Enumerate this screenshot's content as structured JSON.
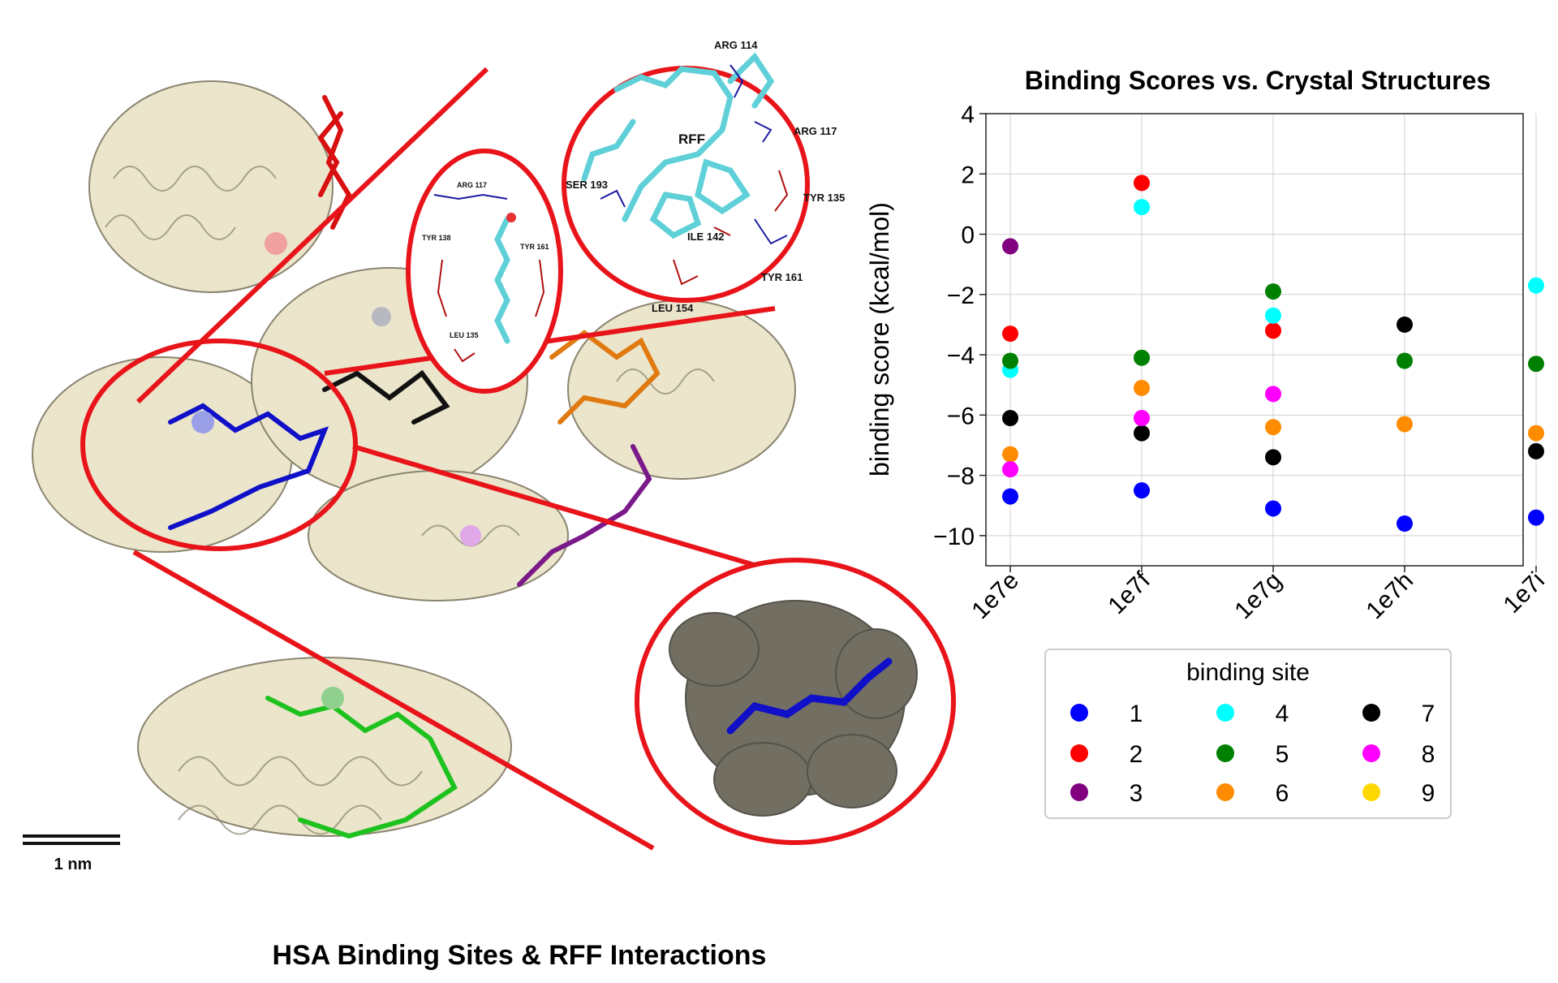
{
  "left_panel": {
    "caption": "HSA Binding Sites & RFF Interactions",
    "scale_bar_label": "1 nm",
    "zoom_top_labels": {
      "arg114": "ARG 114",
      "arg117": "ARG 117",
      "ser193": "SER 193",
      "rff": "RFF",
      "tyr135": "TYR 135",
      "ile142": "ILE 142",
      "tyr161": "TYR 161",
      "leu154": "LEU 154"
    },
    "zoom_mid_labels": {
      "arg117": "ARG 117",
      "tyr138": "TYR 138",
      "tyr161": "TYR 161",
      "leu135": "LEU 135"
    },
    "colors": {
      "highlight": "#e8141a",
      "protein": "#e8e2c8",
      "surface": "#6b685a",
      "ligand_site1": "#1010c8",
      "ligand_site2": "#d81010",
      "ligand_site3": "#7a1a8a",
      "ligand_site5": "#1ec21e",
      "ligand_site6": "#e07a10",
      "ligand_site7": "#111111",
      "rff_carbon": "#5fd0d8"
    }
  },
  "chart_data": {
    "type": "scatter",
    "title": "Binding Scores vs. Crystal Structures",
    "xlabel": "",
    "ylabel": "binding score (kcal/mol)",
    "categories": [
      "1e7e",
      "1e7f",
      "1e7g",
      "1e7h",
      "1e7i"
    ],
    "ylim": [
      -11,
      4
    ],
    "yticks": [
      4,
      2,
      0,
      -2,
      -4,
      -6,
      -8,
      -10
    ],
    "ytick_labels": [
      "4",
      "2",
      "0",
      "−2",
      "−4",
      "−6",
      "−8",
      "−10"
    ],
    "grid": true,
    "legend_title": "binding site",
    "legend_position": "bottom",
    "series": [
      {
        "name": "1",
        "color": "#0000ff",
        "values": [
          -8.7,
          -8.5,
          -9.1,
          -9.6,
          -9.4
        ]
      },
      {
        "name": "2",
        "color": "#ff0000",
        "values": [
          -3.3,
          1.7,
          -3.2,
          null,
          null
        ]
      },
      {
        "name": "3",
        "color": "#800080",
        "values": [
          -0.4,
          null,
          null,
          null,
          null
        ]
      },
      {
        "name": "4",
        "color": "#00ffff",
        "values": [
          -4.5,
          0.9,
          -2.7,
          null,
          -1.7
        ]
      },
      {
        "name": "5",
        "color": "#008000",
        "values": [
          -4.2,
          -4.1,
          -1.9,
          -4.2,
          -4.3
        ]
      },
      {
        "name": "6",
        "color": "#ff8c00",
        "values": [
          -7.3,
          -5.1,
          -6.4,
          -6.3,
          -6.6
        ]
      },
      {
        "name": "7",
        "color": "#000000",
        "values": [
          -6.1,
          -6.6,
          -7.4,
          -3.0,
          -7.2
        ]
      },
      {
        "name": "8",
        "color": "#ff00ff",
        "values": [
          -7.8,
          -6.1,
          -5.3,
          null,
          null
        ]
      },
      {
        "name": "9",
        "color": "#ffd700",
        "values": [
          null,
          null,
          null,
          null,
          null
        ]
      }
    ]
  }
}
